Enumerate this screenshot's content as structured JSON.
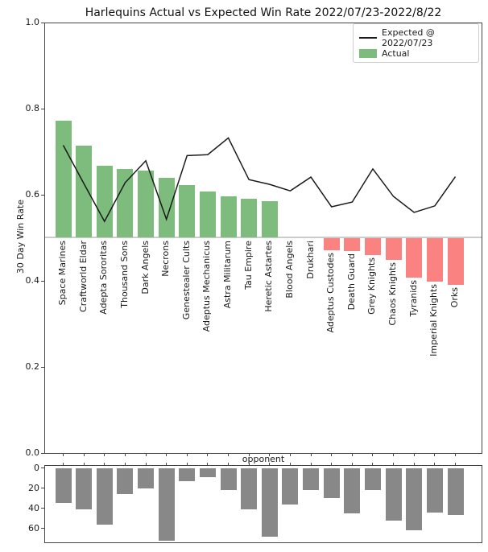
{
  "chart_data": [
    {
      "id": "win_rate",
      "type": "bar",
      "combo": "bar+line",
      "title": "Harlequins Actual vs Expected Win Rate 2022/07/23-2022/8/22",
      "xlabel": "opponent",
      "ylabel": "30 Day Win Rate",
      "ylim": [
        0.0,
        1.0
      ],
      "yticks": [
        0.0,
        0.2,
        0.4,
        0.6,
        0.8,
        1.0
      ],
      "baseline": 0.5,
      "grid": false,
      "legend_position": "upper right",
      "categories": [
        "Space Marines",
        "Craftworld Eldar",
        "Adepta Sororitas",
        "Thousand Sons",
        "Dark Angels",
        "Necrons",
        "Genestealer Cults",
        "Adeptus Mechanicus",
        "Astra Militarum",
        "Tau Empire",
        "Heretic Astartes",
        "Blood Angels",
        "Drukhari",
        "Adeptus Custodes",
        "Death Guard",
        "Grey Knights",
        "Chaos Knights",
        "Tyranids",
        "Imperial Knights",
        "Orks"
      ],
      "series": [
        {
          "name": "Expected @ 2022/07/23",
          "type": "line",
          "values": [
            0.715,
            0.626,
            0.538,
            0.628,
            0.679,
            0.543,
            0.691,
            0.693,
            0.732,
            0.635,
            0.624,
            0.609,
            0.641,
            0.572,
            0.583,
            0.66,
            0.596,
            0.559,
            0.574,
            0.642
          ]
        },
        {
          "name": "Actual",
          "type": "bar",
          "values": [
            0.772,
            0.714,
            0.668,
            0.66,
            0.657,
            0.639,
            0.622,
            0.607,
            0.597,
            0.591,
            0.585,
            0.5,
            0.5,
            0.471,
            0.47,
            0.459,
            0.449,
            0.407,
            0.399,
            0.39
          ]
        }
      ]
    },
    {
      "id": "games_played",
      "type": "bar",
      "inverted_y": true,
      "yticks": [
        0,
        20,
        40,
        60
      ],
      "categories": [
        "Space Marines",
        "Craftworld Eldar",
        "Adepta Sororitas",
        "Thousand Sons",
        "Dark Angels",
        "Necrons",
        "Genestealer Cults",
        "Adeptus Mechanicus",
        "Astra Militarum",
        "Tau Empire",
        "Heretic Astartes",
        "Blood Angels",
        "Drukhari",
        "Adeptus Custodes",
        "Death Guard",
        "Grey Knights",
        "Chaos Knights",
        "Tyranids",
        "Imperial Knights",
        "Orks"
      ],
      "values": [
        35,
        41,
        56,
        26,
        20,
        72,
        13,
        9,
        22,
        41,
        68,
        36,
        22,
        30,
        45,
        22,
        52,
        62,
        44,
        47
      ]
    }
  ],
  "legend": {
    "items": [
      {
        "label": "Expected @ 2022/07/23",
        "marker": "line"
      },
      {
        "label": "Actual",
        "marker": "patch"
      }
    ]
  },
  "colors": {
    "actual_above_baseline": "#7dbc7d",
    "actual_below_baseline": "#fa8280",
    "expected_line": "#1a1a1a",
    "games_bar": "#888888",
    "baseline_line": "#cccccc"
  }
}
